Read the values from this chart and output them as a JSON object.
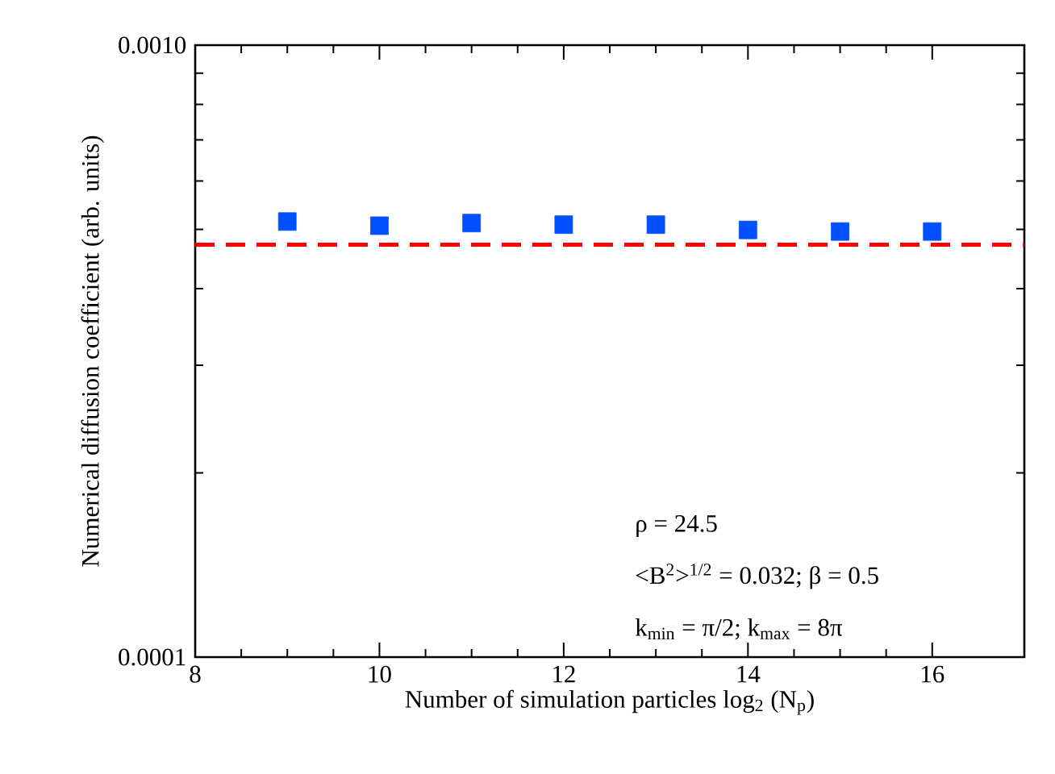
{
  "chart_data": {
    "type": "scatter",
    "xlabel": "Number of simulation particles log$_{2}$ (N$_{p}$)",
    "ylabel": "Numerical diffusion coefficient (arb. units)",
    "x": [
      9,
      10,
      11,
      12,
      13,
      14,
      15,
      16
    ],
    "series": [
      {
        "color": "#0050ff",
        "values": [
          0.000515,
          0.000507,
          0.000512,
          0.000509,
          0.000509,
          0.000499,
          0.000496,
          0.000496
        ]
      }
    ],
    "marker": "square",
    "log": "y",
    "xlim": [
      8,
      17
    ],
    "xticks": [
      8,
      10,
      12,
      14,
      16
    ],
    "ylim": [
      0.0001,
      0.001
    ],
    "yticks": [
      {
        "value": 0.0001,
        "label": "0.0001"
      },
      {
        "value": 0.001,
        "label": "0.0010"
      }
    ],
    "ref_lines": [
      {
        "axis": "y",
        "value": 0.000472,
        "color": "#ff0000",
        "line_style": "dashed"
      }
    ],
    "annotations": [
      "ρ = 24.5",
      "<B$^{2}$>$^{1/2}$ = 0.032; β = 0.5",
      "k$_{min}$ = π/2; k$_{max}$ = 8π"
    ]
  }
}
